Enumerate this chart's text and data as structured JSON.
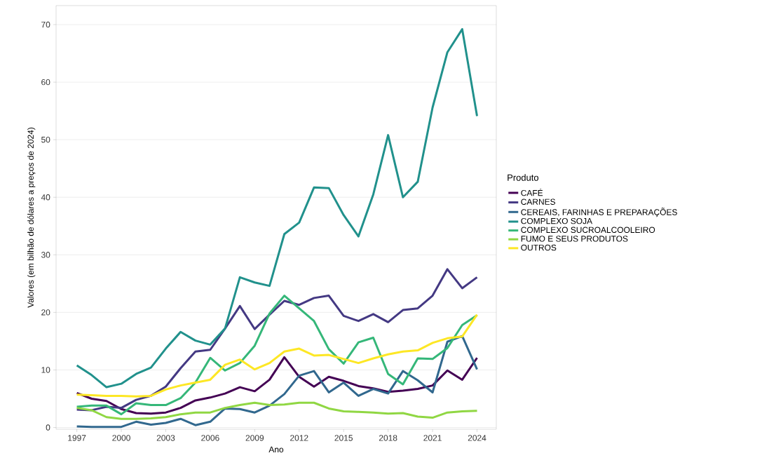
{
  "chart_data": {
    "type": "line",
    "xlabel": "Ano",
    "ylabel": "Valores (em bilhão de dólares a preços de 2024)",
    "legend_title": "Produto",
    "x": [
      1997,
      1998,
      1999,
      2000,
      2001,
      2002,
      2003,
      2004,
      2005,
      2006,
      2007,
      2008,
      2009,
      2010,
      2011,
      2012,
      2013,
      2014,
      2015,
      2016,
      2017,
      2018,
      2019,
      2020,
      2021,
      2022,
      2023,
      2024
    ],
    "xlim": [
      1995.6,
      2025.3
    ],
    "xticks": [
      1997,
      2000,
      2003,
      2006,
      2009,
      2012,
      2015,
      2018,
      2021,
      2024
    ],
    "ylim": [
      -0.3,
      73.3
    ],
    "yticks": [
      0,
      10,
      20,
      30,
      40,
      50,
      60,
      70
    ],
    "grid": "y",
    "legend": "right",
    "line_style": "solid",
    "marker": "none",
    "series": [
      {
        "name": "CAFÉ",
        "color": "#440154",
        "values": [
          6.0,
          5.0,
          4.6,
          3.2,
          2.5,
          2.4,
          2.6,
          3.4,
          4.7,
          5.2,
          5.9,
          7.0,
          6.3,
          8.3,
          12.2,
          8.8,
          7.1,
          8.8,
          8.1,
          7.2,
          6.8,
          6.2,
          6.4,
          6.7,
          7.3,
          9.9,
          8.3,
          12.1
        ]
      },
      {
        "name": "CARNES",
        "color": "#443983",
        "values": [
          3.1,
          3.0,
          3.6,
          3.4,
          4.8,
          5.5,
          7.1,
          10.3,
          13.2,
          13.5,
          17.2,
          21.1,
          17.1,
          19.6,
          22.0,
          21.3,
          22.5,
          22.9,
          19.4,
          18.5,
          19.7,
          18.3,
          20.4,
          20.7,
          22.9,
          27.5,
          24.2,
          26.1
        ]
      },
      {
        "name": "CEREAIS, FARINHAS E PREPARAÇÕES",
        "color": "#31688e",
        "values": [
          0.2,
          0.1,
          0.1,
          0.1,
          1.0,
          0.5,
          0.8,
          1.5,
          0.4,
          1.0,
          3.3,
          3.2,
          2.6,
          3.8,
          5.8,
          9.0,
          9.8,
          6.1,
          7.8,
          5.5,
          6.7,
          5.9,
          9.8,
          8.2,
          6.1,
          14.9,
          15.9,
          10.1
        ]
      },
      {
        "name": "COMPLEXO SOJA",
        "color": "#21918c",
        "values": [
          10.8,
          9.1,
          7.0,
          7.6,
          9.3,
          10.4,
          13.7,
          16.6,
          15.1,
          14.4,
          17.2,
          26.1,
          25.2,
          24.6,
          33.6,
          35.6,
          41.7,
          41.6,
          36.9,
          33.2,
          40.5,
          50.8,
          40.0,
          42.7,
          55.6,
          65.2,
          69.2,
          54.1
        ]
      },
      {
        "name": "COMPLEXO SUCROALCOOLEIRO",
        "color": "#35b779",
        "values": [
          3.6,
          3.8,
          3.8,
          2.3,
          4.2,
          3.9,
          3.9,
          5.1,
          7.8,
          12.1,
          9.9,
          11.2,
          14.2,
          19.8,
          22.9,
          20.7,
          18.5,
          13.6,
          11.1,
          14.8,
          15.6,
          9.3,
          7.5,
          12.0,
          11.9,
          13.8,
          17.8,
          19.5
        ]
      },
      {
        "name": "FUMO E SEUS PRODUTOS",
        "color": "#90d743",
        "values": [
          3.4,
          3.0,
          1.8,
          1.5,
          1.5,
          1.6,
          1.8,
          2.3,
          2.6,
          2.6,
          3.4,
          3.9,
          4.3,
          3.9,
          4.0,
          4.3,
          4.3,
          3.3,
          2.8,
          2.7,
          2.6,
          2.4,
          2.5,
          1.9,
          1.7,
          2.6,
          2.8,
          2.9
        ]
      },
      {
        "name": "OUTROS",
        "color": "#fde725",
        "values": [
          5.7,
          5.6,
          5.5,
          5.5,
          5.4,
          5.5,
          6.6,
          7.3,
          7.8,
          8.3,
          10.9,
          11.8,
          10.1,
          11.2,
          13.2,
          13.7,
          12.5,
          12.6,
          11.9,
          11.2,
          12.0,
          12.7,
          13.2,
          13.4,
          14.7,
          15.5,
          15.8,
          19.6
        ]
      }
    ]
  }
}
